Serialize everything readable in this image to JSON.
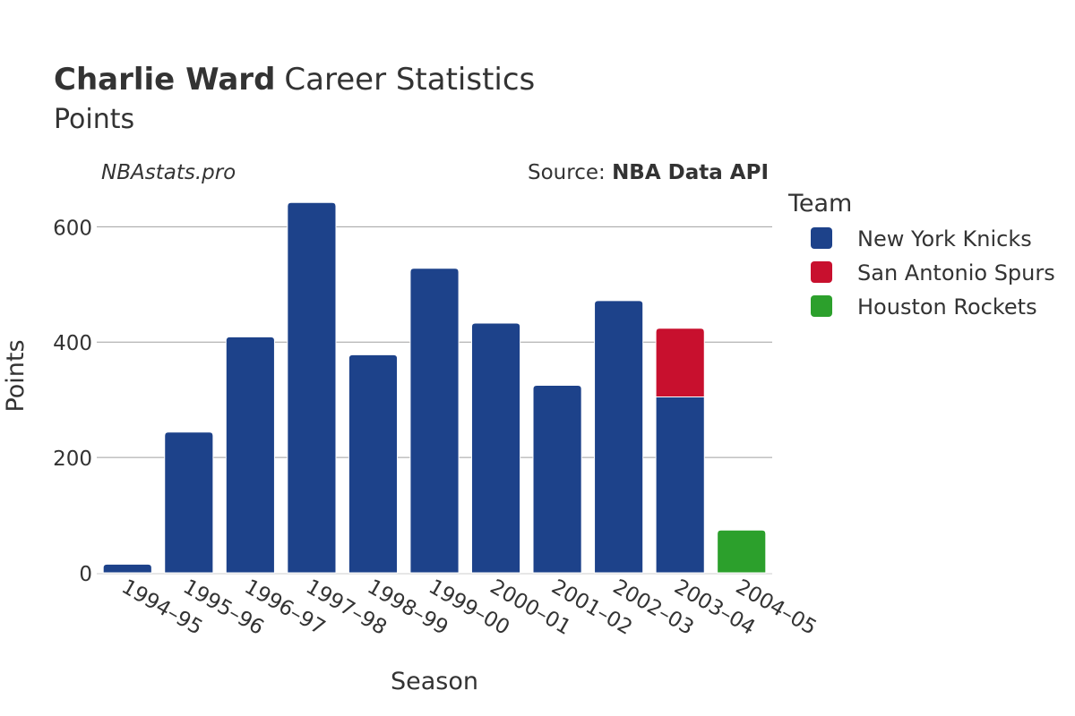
{
  "header": {
    "title_bold": "Charlie Ward",
    "title_rest": "Career Statistics",
    "subtitle": "Points"
  },
  "watermark": "NBAstats.pro",
  "source": {
    "prefix": "Source: ",
    "name": "NBA Data API"
  },
  "legend": {
    "title": "Team",
    "placement": "right"
  },
  "colors": {
    "New York Knicks": "#1d428a",
    "San Antonio Spurs": "#c8102e",
    "Houston Rockets": "#2ca02c",
    "grid": "#a0a0a0"
  },
  "chart_data": {
    "type": "bar",
    "stacked": true,
    "xlabel": "Season",
    "ylabel": "Points",
    "ylim": [
      0,
      675
    ],
    "yticks": [
      0,
      200,
      400,
      600
    ],
    "grid": true,
    "categories": [
      "1994–95",
      "1995–96",
      "1996–97",
      "1997–98",
      "1998–99",
      "1999–00",
      "2000–01",
      "2001–02",
      "2002–03",
      "2003–04",
      "2004–05"
    ],
    "series": [
      {
        "name": "New York Knicks",
        "values": [
          15,
          244,
          409,
          642,
          378,
          528,
          433,
          325,
          472,
          305,
          0
        ]
      },
      {
        "name": "San Antonio Spurs",
        "values": [
          0,
          0,
          0,
          0,
          0,
          0,
          0,
          0,
          0,
          119,
          0
        ]
      },
      {
        "name": "Houston Rockets",
        "values": [
          0,
          0,
          0,
          0,
          0,
          0,
          0,
          0,
          0,
          0,
          74
        ]
      }
    ]
  }
}
